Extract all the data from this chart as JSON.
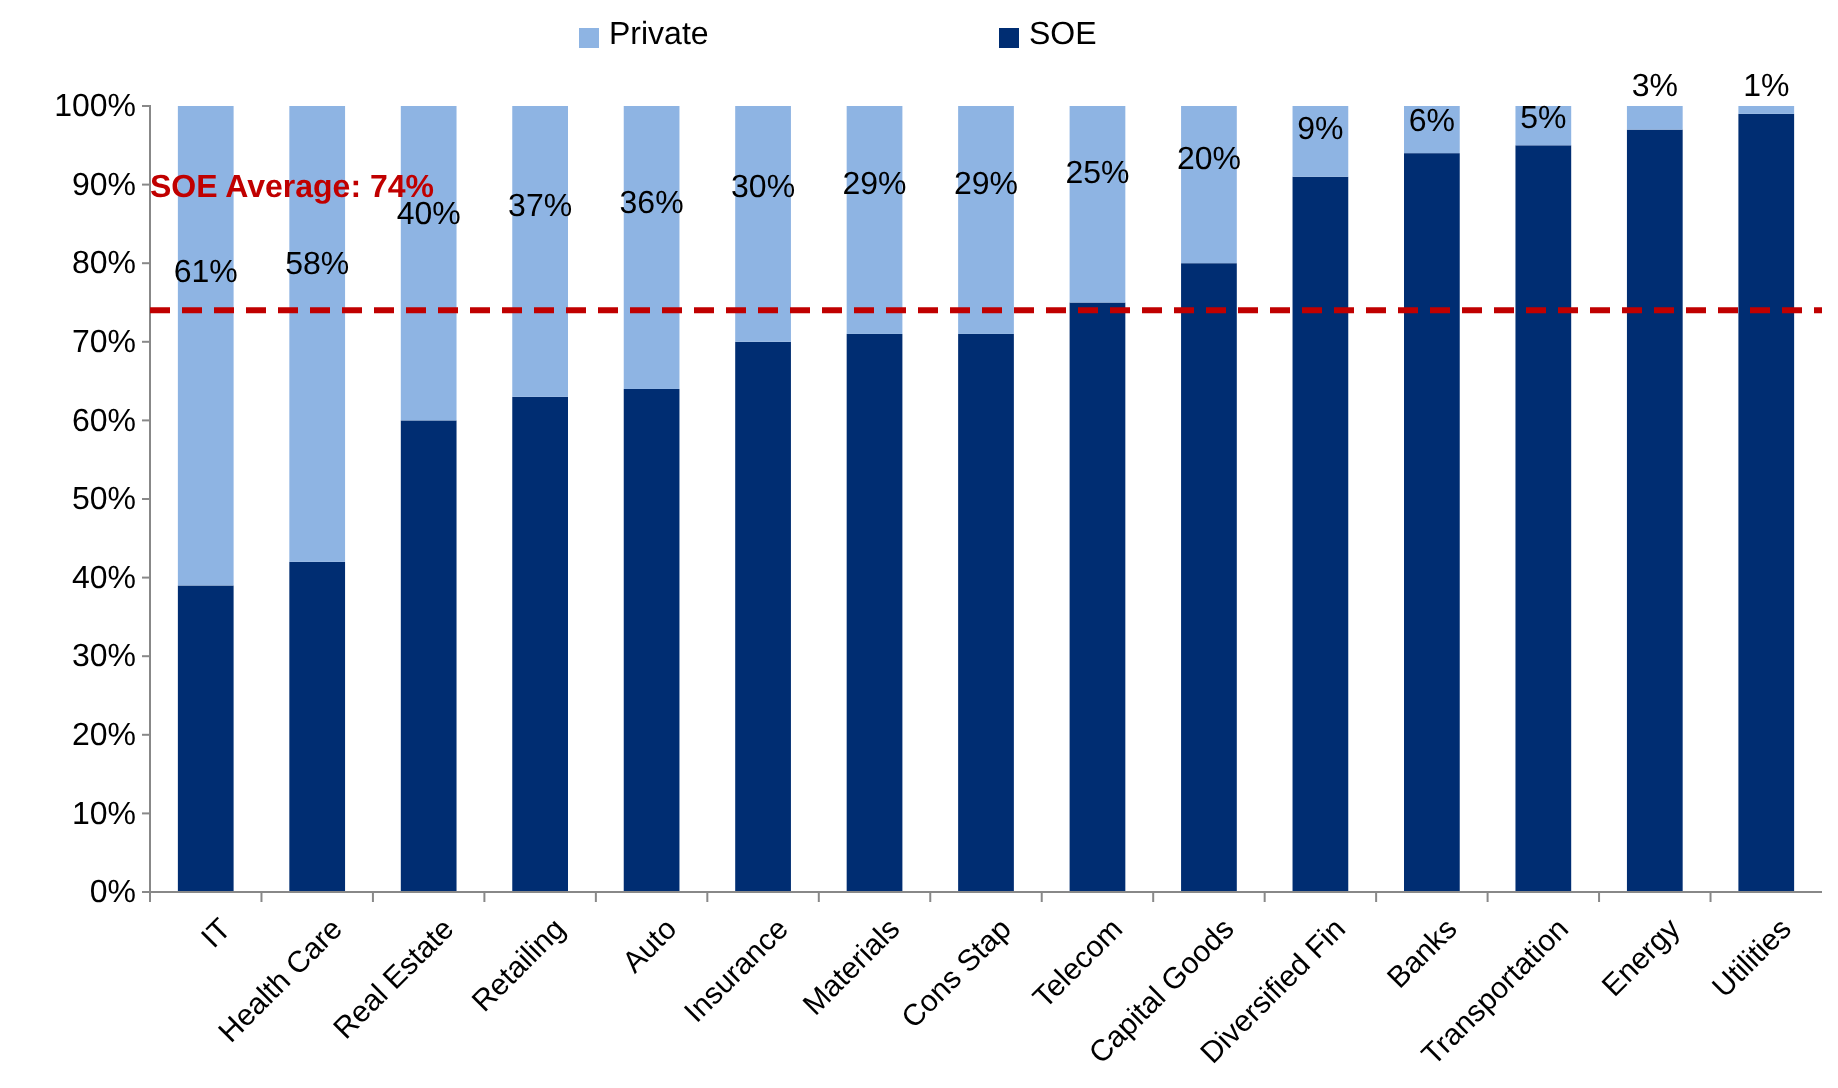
{
  "chart_data": {
    "type": "bar",
    "stacked": true,
    "categories": [
      "IT",
      "Health Care",
      "Real Estate",
      "Retailing",
      "Auto",
      "Insurance",
      "Materials",
      "Cons Stap",
      "Telecom",
      "Capital Goods",
      "Diversified Fin",
      "Banks",
      "Transportation",
      "Energy",
      "Utilities"
    ],
    "series": [
      {
        "name": "SOE",
        "color": "#002d72",
        "values": [
          39,
          42,
          60,
          63,
          64,
          70,
          71,
          71,
          75,
          80,
          91,
          94,
          95,
          97,
          99
        ]
      },
      {
        "name": "Private",
        "color": "#8eb4e3",
        "values": [
          61,
          58,
          40,
          37,
          36,
          30,
          29,
          29,
          25,
          20,
          9,
          6,
          5,
          3,
          1
        ],
        "value_labels": [
          "61%",
          "58%",
          "40%",
          "37%",
          "36%",
          "30%",
          "29%",
          "29%",
          "25%",
          "20%",
          "9%",
          "6%",
          "5%",
          "3%",
          "1%"
        ]
      }
    ],
    "ylim": [
      0,
      100
    ],
    "yticks": [
      {
        "value": 0,
        "label": "0%"
      },
      {
        "value": 10,
        "label": "10%"
      },
      {
        "value": 20,
        "label": "20%"
      },
      {
        "value": 30,
        "label": "30%"
      },
      {
        "value": 40,
        "label": "40%"
      },
      {
        "value": 50,
        "label": "50%"
      },
      {
        "value": 60,
        "label": "60%"
      },
      {
        "value": 70,
        "label": "70%"
      },
      {
        "value": 80,
        "label": "80%"
      },
      {
        "value": 90,
        "label": "90%"
      },
      {
        "value": 100,
        "label": "100%"
      }
    ],
    "ref_lines": [
      {
        "axis": "y",
        "value": 74,
        "label": "SOE Average: 74%",
        "color": "#c00000",
        "line_style": "dashed"
      }
    ],
    "grid": false,
    "legend": "top"
  }
}
